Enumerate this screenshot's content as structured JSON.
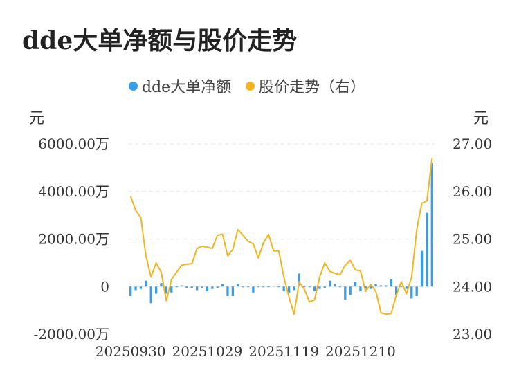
{
  "title": "dde大单净额与股价走势",
  "legend": {
    "left_name": "dde大单净额",
    "right_name": "股价走势（右）"
  },
  "colors": {
    "bar": "#3a9de8",
    "line": "#f2b520",
    "grid": "#e3e3e3"
  },
  "chart_data": {
    "type": "bar",
    "title": "dde大单净额与股价走势",
    "left_axis": {
      "unit": "元",
      "range": [
        -2000,
        6000
      ],
      "ticks": [
        -2000,
        0,
        2000,
        4000,
        6000
      ],
      "tick_labels": [
        "-2000.00万",
        "0",
        "2000.00万",
        "4000.00万",
        "6000.00万"
      ]
    },
    "right_axis": {
      "unit": "元",
      "range": [
        23,
        27
      ],
      "ticks": [
        23,
        24,
        25,
        26,
        27
      ],
      "tick_labels": [
        "23.00",
        "24.00",
        "25.00",
        "26.00",
        "27.00"
      ]
    },
    "x_tick_labels": [
      "20250930",
      "20251029",
      "20251119",
      "20251210"
    ],
    "x_tick_index": [
      0,
      15,
      30,
      45
    ],
    "grid": true,
    "legend_position": "top-center",
    "series": [
      {
        "name": "dde大单净额",
        "type": "bar",
        "axis": "left",
        "values": [
          -400,
          -150,
          -100,
          250,
          -700,
          -300,
          150,
          -300,
          -250,
          0,
          50,
          -50,
          -50,
          -150,
          -50,
          -200,
          -100,
          -50,
          100,
          -400,
          -400,
          100,
          -30,
          0,
          -250,
          0,
          0,
          0,
          30,
          0,
          -200,
          -250,
          -150,
          550,
          0,
          0,
          -200,
          -100,
          -50,
          250,
          100,
          0,
          -550,
          -350,
          200,
          -200,
          -100,
          -100,
          100,
          50,
          50,
          300,
          -350,
          0,
          -100,
          -500,
          -400,
          1500,
          3100,
          5200
        ]
      },
      {
        "name": "股价走势（右）",
        "type": "line",
        "axis": "right",
        "values": [
          25.9,
          25.6,
          25.45,
          24.65,
          24.2,
          24.5,
          24.3,
          23.7,
          24.15,
          24.3,
          24.45,
          24.47,
          24.48,
          24.8,
          24.85,
          24.83,
          24.8,
          25.08,
          25.1,
          24.65,
          24.78,
          25.2,
          25.08,
          24.95,
          24.9,
          24.6,
          24.92,
          25.1,
          24.75,
          24.75,
          24.2,
          23.78,
          23.42,
          24.1,
          23.95,
          23.68,
          23.72,
          24.2,
          24.5,
          24.32,
          24.28,
          24.25,
          24.45,
          24.55,
          24.35,
          24.33,
          23.9,
          24.05,
          23.9,
          23.45,
          23.42,
          23.43,
          23.82,
          24.1,
          23.85,
          24.2,
          25.2,
          25.75,
          25.8,
          26.7
        ]
      }
    ]
  }
}
